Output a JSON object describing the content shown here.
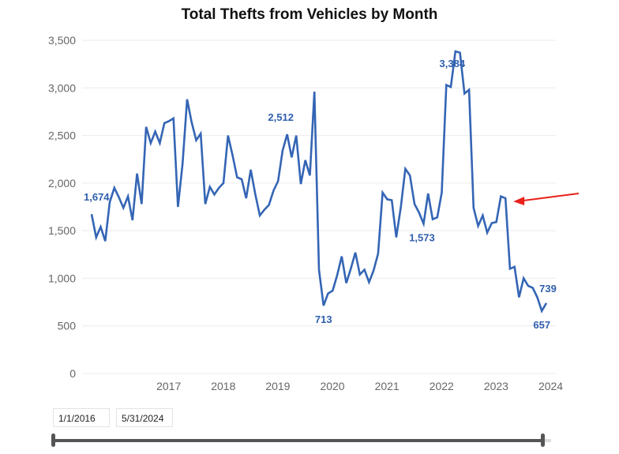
{
  "chart_data": {
    "type": "line",
    "title": "Total Thefts from Vehicles by Month",
    "xlabel": "",
    "ylabel": "",
    "ylim": [
      0,
      3500
    ],
    "yticks": [
      "0",
      "500",
      "1,000",
      "1,500",
      "2,000",
      "2,500",
      "3,000",
      "3,500"
    ],
    "ytick_values": [
      0,
      500,
      1000,
      1500,
      2000,
      2500,
      3000,
      3500
    ],
    "xticks": [
      "2017",
      "2018",
      "2019",
      "2020",
      "2021",
      "2022",
      "2023",
      "2024"
    ],
    "grid": true,
    "legend": "none",
    "x_start": "2016-01",
    "x_end": "2024-05",
    "series": [
      {
        "name": "Total Thefts from Vehicles",
        "color": "#3465b5",
        "values": [
          1674,
          1430,
          1540,
          1390,
          1800,
          1950,
          1850,
          1740,
          1860,
          1610,
          2100,
          1780,
          2590,
          2420,
          2540,
          2420,
          2630,
          2650,
          2680,
          1750,
          2200,
          2880,
          2640,
          2450,
          2520,
          1780,
          1960,
          1880,
          1950,
          2000,
          2500,
          2290,
          2060,
          2040,
          1840,
          2140,
          1880,
          1660,
          1720,
          1770,
          1920,
          2020,
          2340,
          2512,
          2270,
          2500,
          1990,
          2240,
          2080,
          2960,
          1090,
          713,
          840,
          870,
          1030,
          1230,
          950,
          1100,
          1270,
          1040,
          1090,
          960,
          1080,
          1260,
          1900,
          1830,
          1820,
          1430,
          1750,
          2150,
          2080,
          1780,
          1690,
          1573,
          1890,
          1620,
          1640,
          1900,
          3030,
          3010,
          3384,
          3370,
          2940,
          2980,
          1740,
          1550,
          1660,
          1480,
          1580,
          1590,
          1860,
          1840,
          1100,
          1120,
          800,
          1000,
          920,
          900,
          800,
          657,
          739
        ]
      }
    ],
    "data_labels": [
      {
        "text": "1,674",
        "month_index": 0,
        "value": 1674
      },
      {
        "text": "2,512",
        "month_index": 43,
        "value": 2512
      },
      {
        "text": "713",
        "month_index": 51,
        "value": 713
      },
      {
        "text": "1,573",
        "month_index": 73,
        "value": 1573
      },
      {
        "text": "3,384",
        "month_index": 80,
        "value": 3384
      },
      {
        "text": "657",
        "month_index": 99,
        "value": 657
      },
      {
        "text": "739",
        "month_index": 100,
        "value": 739
      }
    ],
    "annotations": [
      {
        "type": "arrow",
        "color": "#e8221b",
        "points_to_month_index": 91,
        "description": "red arrow pointing left at late-2023 value"
      }
    ]
  },
  "date_range": {
    "start": "1/1/2016",
    "end": "5/31/2024"
  }
}
